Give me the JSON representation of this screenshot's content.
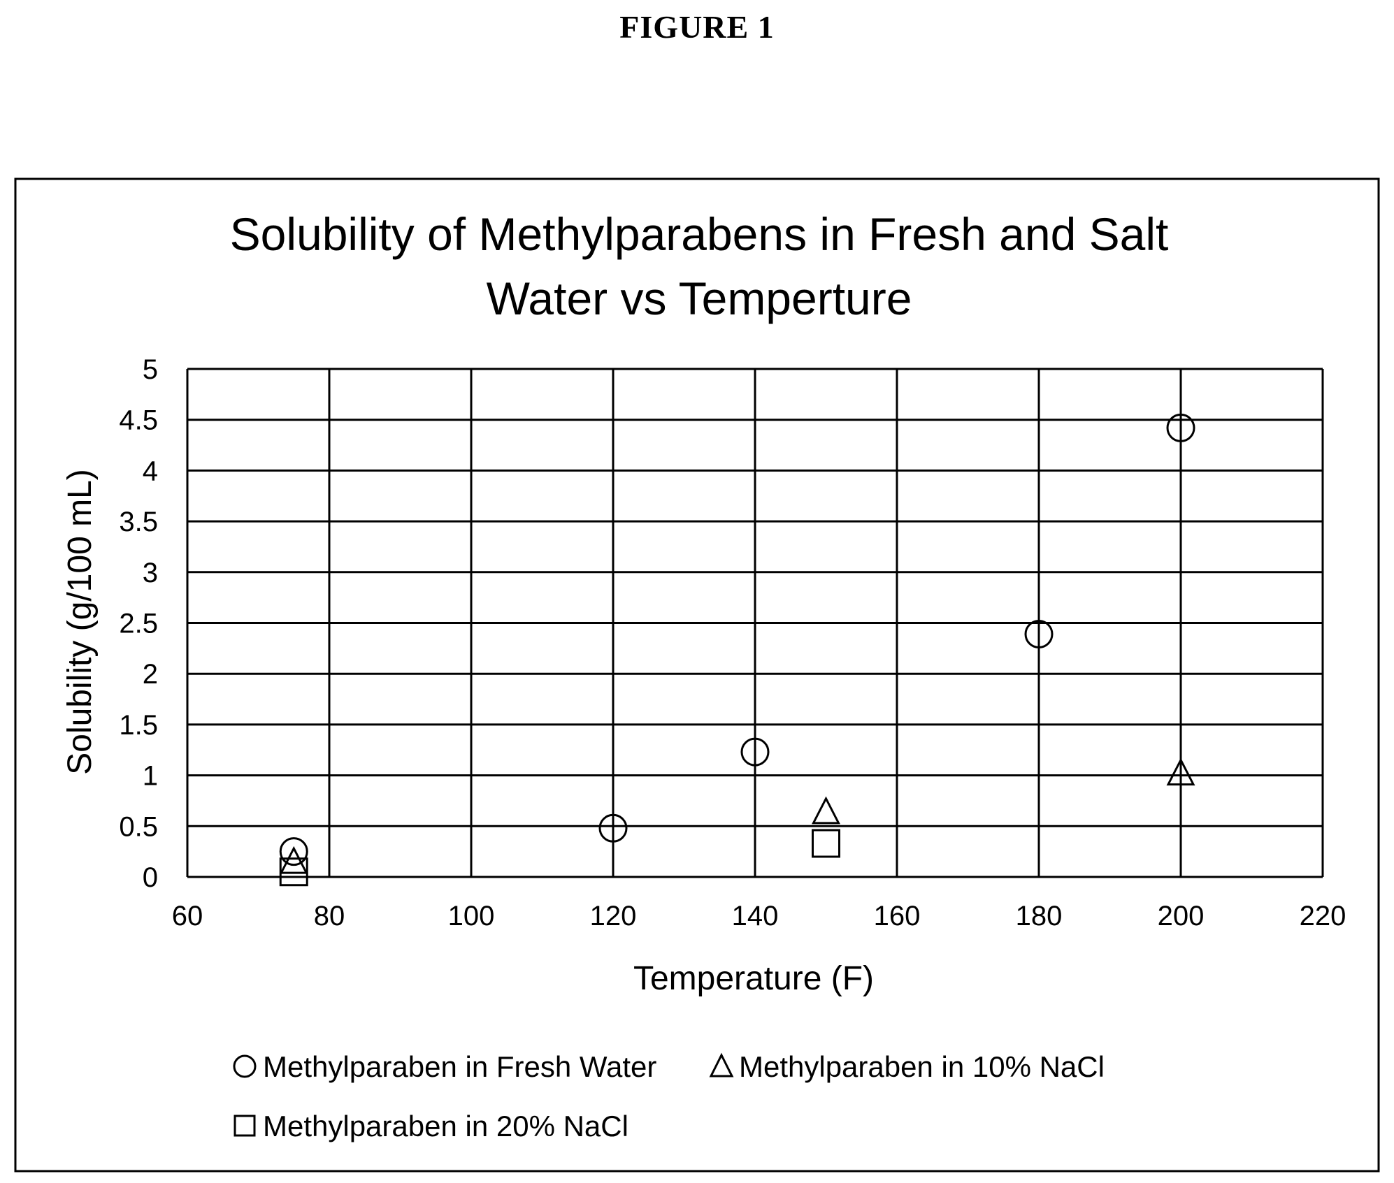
{
  "figure_label": "FIGURE 1",
  "chart_data": {
    "type": "scatter",
    "title_lines": [
      "Solubility of Methylparabens in Fresh and Salt",
      "Water vs Temperture"
    ],
    "xlabel": "Temperature (F)",
    "ylabel": "Solubility  (g/100 mL)",
    "xlim": [
      60,
      220
    ],
    "ylim": [
      0,
      5
    ],
    "xticks": [
      60,
      80,
      100,
      120,
      140,
      160,
      180,
      200,
      220
    ],
    "yticks": [
      0,
      0.5,
      1,
      1.5,
      2,
      2.5,
      3,
      3.5,
      4,
      4.5,
      5
    ],
    "grid": true,
    "legend_position": "bottom",
    "series": [
      {
        "name": "Methylparaben in Fresh Water",
        "marker": "circle",
        "points": [
          [
            75,
            0.25
          ],
          [
            120,
            0.48
          ],
          [
            140,
            1.23
          ],
          [
            180,
            2.39
          ],
          [
            200,
            4.42
          ]
        ]
      },
      {
        "name": "Methylparaben in 10% NaCl",
        "marker": "triangle",
        "points": [
          [
            75,
            0.13
          ],
          [
            150,
            0.62
          ],
          [
            200,
            1.0
          ]
        ]
      },
      {
        "name": "Methylparaben in 20% NaCl",
        "marker": "square",
        "points": [
          [
            75,
            0.05
          ],
          [
            150,
            0.33
          ]
        ]
      }
    ]
  }
}
